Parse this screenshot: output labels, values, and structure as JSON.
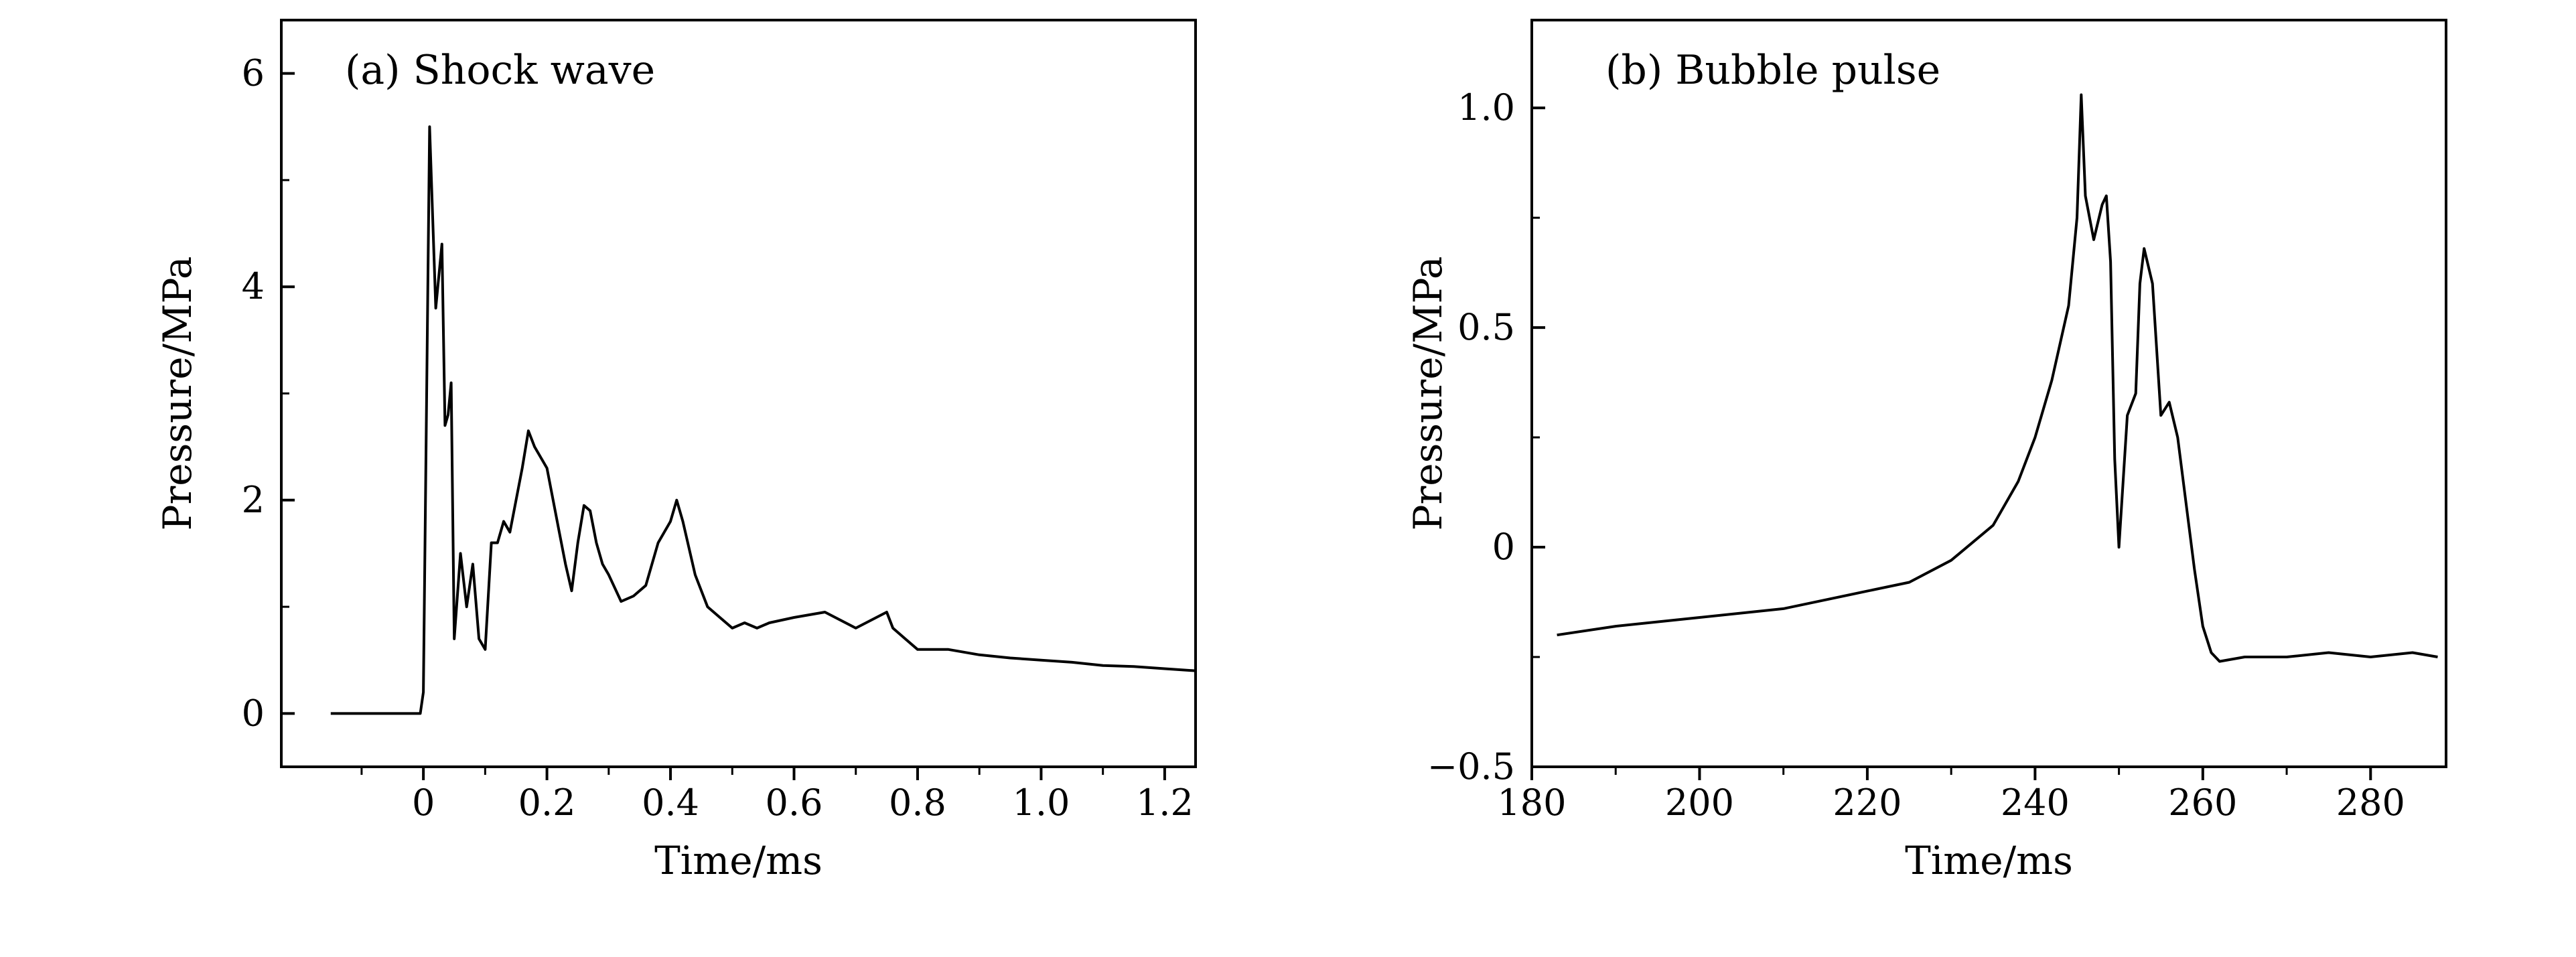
{
  "chart_data": [
    {
      "type": "line",
      "title": "(a) Shock wave",
      "xlabel": "Time/ms",
      "ylabel": "Pressure/MPa",
      "xlim": [
        -0.23,
        1.25
      ],
      "ylim": [
        -0.5,
        6.5
      ],
      "xticks": [
        0,
        0.2,
        0.4,
        0.6,
        0.8,
        1.0,
        1.2
      ],
      "xtick_labels": [
        "0",
        "0.2",
        "0.4",
        "0.6",
        "0.8",
        "1.0",
        "1.2"
      ],
      "yticks": [
        0,
        2,
        4,
        6
      ],
      "ytick_labels": [
        "0",
        "2",
        "4",
        "6"
      ],
      "grid": false,
      "series": [
        {
          "color": "#000000",
          "x": [
            -0.15,
            -0.1,
            -0.05,
            -0.005,
            0.0,
            0.01,
            0.02,
            0.03,
            0.035,
            0.04,
            0.045,
            0.05,
            0.06,
            0.07,
            0.08,
            0.09,
            0.1,
            0.11,
            0.12,
            0.13,
            0.14,
            0.15,
            0.16,
            0.17,
            0.18,
            0.19,
            0.2,
            0.22,
            0.23,
            0.24,
            0.25,
            0.26,
            0.27,
            0.28,
            0.29,
            0.3,
            0.32,
            0.34,
            0.36,
            0.38,
            0.4,
            0.41,
            0.42,
            0.44,
            0.46,
            0.48,
            0.5,
            0.52,
            0.54,
            0.56,
            0.6,
            0.65,
            0.7,
            0.75,
            0.76,
            0.78,
            0.8,
            0.85,
            0.9,
            0.95,
            1.0,
            1.05,
            1.1,
            1.15,
            1.2,
            1.25
          ],
          "y": [
            0.0,
            0.0,
            0.0,
            0.0,
            0.2,
            5.5,
            3.8,
            4.4,
            2.7,
            2.8,
            3.1,
            0.7,
            1.5,
            1.0,
            1.4,
            0.7,
            0.6,
            1.6,
            1.6,
            1.8,
            1.7,
            2.0,
            2.3,
            2.65,
            2.5,
            2.4,
            2.3,
            1.7,
            1.4,
            1.15,
            1.6,
            1.95,
            1.9,
            1.6,
            1.4,
            1.3,
            1.05,
            1.1,
            1.2,
            1.6,
            1.8,
            2.0,
            1.8,
            1.3,
            1.0,
            0.9,
            0.8,
            0.85,
            0.8,
            0.85,
            0.9,
            0.95,
            0.8,
            0.95,
            0.8,
            0.7,
            0.6,
            0.6,
            0.55,
            0.52,
            0.5,
            0.48,
            0.45,
            0.44,
            0.42,
            0.4
          ]
        }
      ]
    },
    {
      "type": "line",
      "title": "(b) Bubble pulse",
      "xlabel": "Time/ms",
      "ylabel": "Pressure/MPa",
      "xlim": [
        180,
        289
      ],
      "ylim": [
        -0.5,
        1.2
      ],
      "xticks": [
        180,
        200,
        220,
        240,
        260,
        280
      ],
      "xtick_labels": [
        "180",
        "200",
        "220",
        "240",
        "260",
        "280"
      ],
      "yticks": [
        -0.5,
        0,
        0.5,
        1.0
      ],
      "ytick_labels": [
        "−0.5",
        "0",
        "0.5",
        "1.0"
      ],
      "grid": false,
      "series": [
        {
          "color": "#000000",
          "x": [
            183,
            190,
            200,
            210,
            220,
            225,
            230,
            235,
            238,
            240,
            242,
            244,
            245,
            245.5,
            246,
            247,
            248,
            248.5,
            249,
            249.5,
            250,
            251,
            252,
            252.5,
            253,
            254,
            255,
            256,
            257,
            258,
            259,
            260,
            261,
            262,
            265,
            270,
            275,
            280,
            285,
            288
          ],
          "y": [
            -0.2,
            -0.18,
            -0.16,
            -0.14,
            -0.1,
            -0.08,
            -0.03,
            0.05,
            0.15,
            0.25,
            0.38,
            0.55,
            0.75,
            1.03,
            0.8,
            0.7,
            0.78,
            0.8,
            0.65,
            0.2,
            0.0,
            0.3,
            0.35,
            0.6,
            0.68,
            0.6,
            0.3,
            0.33,
            0.25,
            0.1,
            -0.05,
            -0.18,
            -0.24,
            -0.26,
            -0.25,
            -0.25,
            -0.24,
            -0.25,
            -0.24,
            -0.25
          ]
        }
      ]
    }
  ]
}
